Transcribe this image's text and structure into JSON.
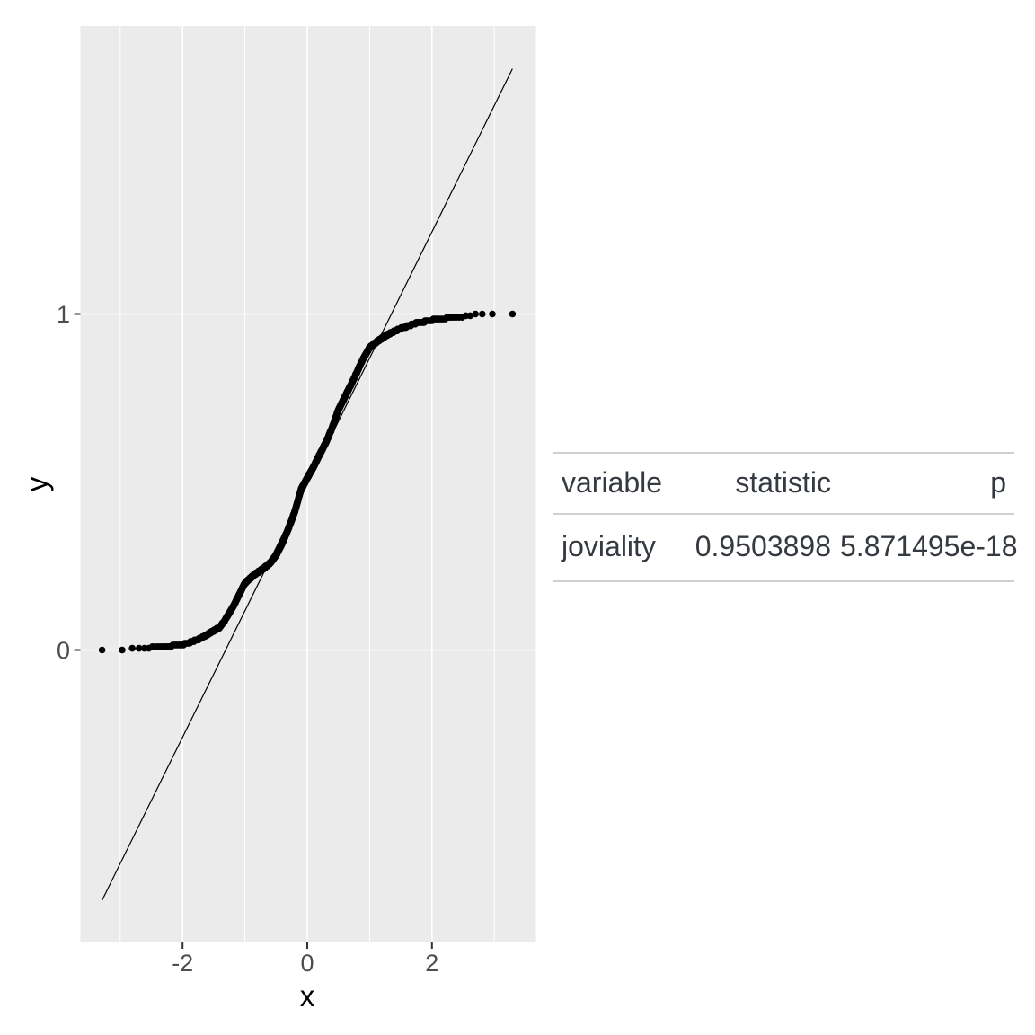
{
  "page": {
    "background": "#FFFFFF"
  },
  "chart_data": {
    "type": "scatter",
    "subtype": "qq-plot",
    "title": "",
    "xlabel": "x",
    "ylabel": "y",
    "xlim": [
      -3.64,
      3.67
    ],
    "ylim": [
      -0.87,
      1.857
    ],
    "grid": true,
    "legend": false,
    "x_ticks": [
      {
        "value": -2,
        "label": "-2"
      },
      {
        "value": 0,
        "label": "0"
      },
      {
        "value": 2,
        "label": "2"
      }
    ],
    "y_ticks": [
      {
        "value": 0,
        "label": "0"
      },
      {
        "value": 1,
        "label": "1"
      }
    ],
    "x_minor_gridlines": [
      -3,
      -1,
      1,
      3
    ],
    "y_minor_gridlines": [
      -0.5,
      0.5,
      1.5
    ],
    "n_points": 1000,
    "point_radius": 3.8,
    "quantile_curve": {
      "comment": "empirical quantile y (data scale 0-1) as function of theoretical normal quantile x",
      "x": [
        -3.29,
        -3.0,
        -2.8,
        -2.6,
        -2.4,
        -2.2,
        -2.0,
        -1.85,
        -1.7,
        -1.55,
        -1.4,
        -1.33,
        -1.2,
        -1.1,
        -1.0,
        -0.85,
        -0.7,
        -0.6,
        -0.5,
        -0.4,
        -0.3,
        -0.2,
        -0.1,
        0.0,
        0.1,
        0.2,
        0.31,
        0.4,
        0.5,
        0.6,
        0.75,
        0.9,
        1.0,
        1.15,
        1.3,
        1.5,
        1.75,
        2.0,
        2.25,
        2.5,
        2.65,
        2.72,
        3.29
      ],
      "y": [
        0.0,
        0.002,
        0.004,
        0.006,
        0.009,
        0.012,
        0.016,
        0.024,
        0.036,
        0.052,
        0.068,
        0.086,
        0.125,
        0.162,
        0.199,
        0.224,
        0.243,
        0.258,
        0.282,
        0.318,
        0.362,
        0.412,
        0.478,
        0.512,
        0.545,
        0.582,
        0.622,
        0.662,
        0.715,
        0.752,
        0.808,
        0.868,
        0.9,
        0.922,
        0.94,
        0.957,
        0.973,
        0.982,
        0.988,
        0.992,
        0.995,
        1.0,
        1.0
      ],
      "y_quantize_step": 0.005
    },
    "reference_line": {
      "slope": 0.376,
      "intercept": 0.4925,
      "x_start": -3.29,
      "x_end": 3.29
    },
    "colors": {
      "panel_bg": "#EBEBEB",
      "gridline": "#FFFFFF",
      "point": "#000000",
      "reference_line": "#000000",
      "tick_mark": "#333333",
      "tick_label": "#4D4D4D",
      "axis_title": "#000000"
    }
  },
  "table": {
    "columns": [
      {
        "label": "variable",
        "align": "left"
      },
      {
        "label": "statistic",
        "align": "right"
      },
      {
        "label": "p",
        "align": "right"
      }
    ],
    "rows": [
      {
        "variable": "joviality",
        "statistic": "0.9503898",
        "p": "5.871495e-18"
      }
    ],
    "rule_color": "#D0D0D0",
    "text_color": "#343A40"
  }
}
